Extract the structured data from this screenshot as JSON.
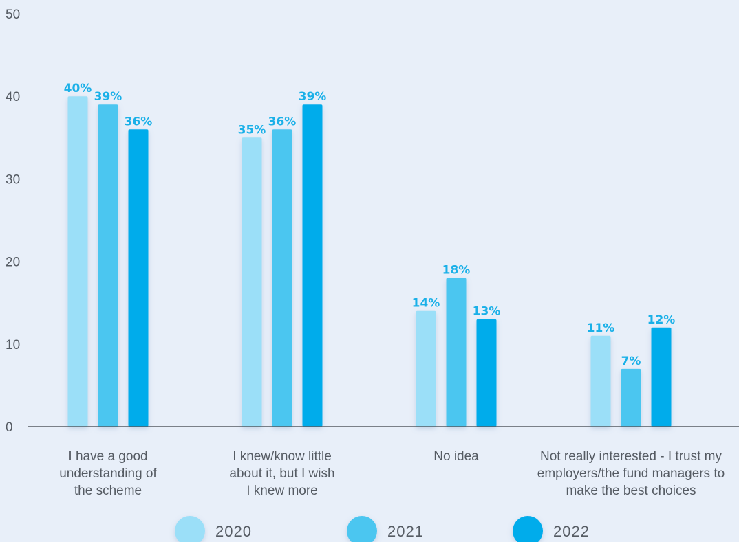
{
  "chart_data": {
    "type": "bar",
    "categories": [
      "I have a good understanding of the scheme",
      "I knew/know little about it, but I wish I knew more",
      "No idea",
      "Not really interested - I trust my employers/the fund managers to make the best choices"
    ],
    "category_lines": [
      [
        "I have a good",
        "understanding of",
        "the scheme"
      ],
      [
        "I knew/know little",
        "about it, but I wish",
        "I knew more"
      ],
      [
        "No idea"
      ],
      [
        "Not really interested - I trust my",
        "employers/the fund managers to",
        "make the best choices"
      ]
    ],
    "series": [
      {
        "name": "2020",
        "values": [
          40,
          35,
          14,
          11
        ],
        "labels": [
          "40%",
          "35%",
          "14%",
          "11%"
        ],
        "color": "#9bdff8"
      },
      {
        "name": "2021",
        "values": [
          39,
          36,
          18,
          7
        ],
        "labels": [
          "39%",
          "36%",
          "18%",
          "7%"
        ],
        "color": "#4bc6f0"
      },
      {
        "name": "2022",
        "values": [
          36,
          39,
          13,
          12
        ],
        "labels": [
          "36%",
          "39%",
          "13%",
          "12%"
        ],
        "color": "#00aceb"
      }
    ],
    "y_ticks": [
      "0",
      "10",
      "20",
      "30",
      "40",
      "50"
    ],
    "ylim": [
      0,
      50
    ],
    "grid": false,
    "legend_position": "bottom-center",
    "label_color": "#1ab0e8",
    "background_color": "#e8eff9",
    "axis_color": "#555b63"
  }
}
